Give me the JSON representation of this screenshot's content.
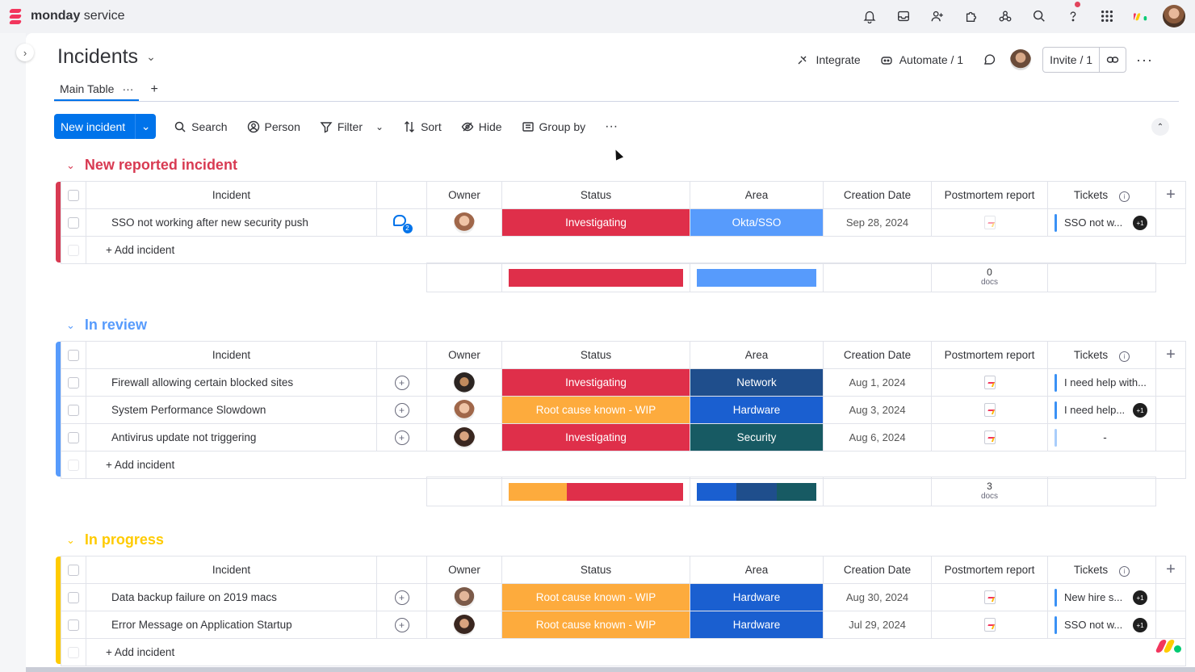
{
  "app": {
    "brand_strong": "monday",
    "brand_light": " service"
  },
  "board": {
    "title": "Incidents",
    "tab": "Main Table",
    "tab_menu": "···",
    "add_tab": "+"
  },
  "header_actions": {
    "integrate": "Integrate",
    "automate": "Automate / 1",
    "invite": "Invite / 1"
  },
  "toolbar": {
    "new_item": "New incident",
    "search": "Search",
    "person": "Person",
    "filter": "Filter",
    "sort": "Sort",
    "hide": "Hide",
    "group_by": "Group by",
    "more": "···"
  },
  "columns": {
    "incident": "Incident",
    "owner": "Owner",
    "status": "Status",
    "area": "Area",
    "creation_date": "Creation Date",
    "postmortem": "Postmortem report",
    "tickets": "Tickets"
  },
  "add_item_label": "+ Add incident",
  "colors": {
    "accent": "#0073ea",
    "investigating": "#df2f4a",
    "root_cause": "#fdab3d",
    "okta": "#579bfc",
    "network": "#1f4e8c",
    "hardware": "#1a5fd0",
    "security": "#175a63",
    "group_new": "#d83a52",
    "group_review": "#579bfc",
    "group_progress": "#ffcb00"
  },
  "groups": [
    {
      "title": "New reported incident",
      "rows": [
        {
          "incident": "SSO not working after new security push",
          "status": "Investigating",
          "area": "Okta/SSO",
          "date": "Sep 28, 2024",
          "ticket": "SSO not w...",
          "ticket_extra": "+1",
          "updates": "2"
        }
      ],
      "summary": {
        "docs_count": "0",
        "docs_label": "docs"
      }
    },
    {
      "title": "In review",
      "rows": [
        {
          "incident": "Firewall allowing certain blocked sites",
          "status": "Investigating",
          "area": "Network",
          "date": "Aug 1, 2024",
          "ticket": "I need help with..."
        },
        {
          "incident": "System Performance Slowdown",
          "status": "Root cause known - WIP",
          "area": "Hardware",
          "date": "Aug 3, 2024",
          "ticket": "I need help...",
          "ticket_extra": "+1"
        },
        {
          "incident": "Antivirus update not triggering",
          "status": "Investigating",
          "area": "Security",
          "date": "Aug 6, 2024",
          "ticket": "-"
        }
      ],
      "summary": {
        "docs_count": "3",
        "docs_label": "docs"
      }
    },
    {
      "title": "In progress",
      "rows": [
        {
          "incident": "Data backup failure on 2019 macs",
          "status": "Root cause known - WIP",
          "area": "Hardware",
          "date": "Aug 30, 2024",
          "ticket": "New hire s...",
          "ticket_extra": "+1"
        },
        {
          "incident": "Error Message on Application Startup",
          "status": "Root cause known - WIP",
          "area": "Hardware",
          "date": "Jul 29, 2024",
          "ticket": "SSO not w...",
          "ticket_extra": "+1"
        }
      ]
    }
  ]
}
